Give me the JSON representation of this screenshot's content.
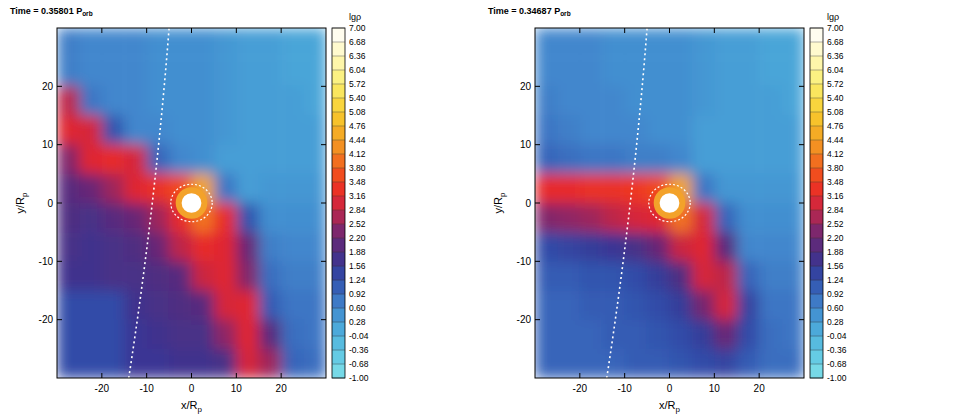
{
  "chart_data": [
    {
      "type": "heatmap",
      "title": "Time = 0.35801 P",
      "title_sub": "orb",
      "xlabel": "x/R",
      "xlabel_sub": "p",
      "ylabel": "y/R",
      "ylabel_sub": "p",
      "xlim": [
        -30,
        30
      ],
      "ylim": [
        -30,
        30
      ],
      "xticks": [
        -20,
        -10,
        0,
        10,
        20
      ],
      "yticks": [
        -20,
        -10,
        0,
        10,
        20
      ],
      "cells": [
        [
          0.7,
          0.6,
          0.6,
          0.6,
          0.5,
          0.5,
          0.5,
          0.4,
          0.3,
          0.3,
          0.2,
          0.2
        ],
        [
          0.7,
          0.6,
          0.6,
          0.6,
          0.5,
          0.5,
          0.5,
          0.4,
          0.3,
          0.3,
          0.2,
          0.2
        ],
        [
          2.8,
          0.8,
          0.6,
          0.6,
          0.5,
          0.5,
          0.5,
          0.4,
          0.3,
          0.3,
          0.3,
          0.2
        ],
        [
          3.1,
          3.0,
          1.2,
          0.6,
          0.6,
          0.5,
          0.5,
          0.4,
          0.3,
          0.3,
          0.3,
          0.3
        ],
        [
          2.4,
          3.1,
          3.2,
          3.0,
          1.0,
          0.6,
          0.5,
          0.3,
          0.3,
          0.3,
          0.3,
          0.3
        ],
        [
          2.0,
          2.2,
          2.6,
          3.1,
          3.3,
          3.6,
          4.5,
          0.8,
          0.3,
          0.4,
          0.4,
          0.4
        ],
        [
          1.9,
          1.8,
          2.0,
          2.2,
          2.6,
          3.2,
          4.0,
          3.2,
          1.2,
          0.5,
          0.5,
          0.5
        ],
        [
          1.8,
          1.7,
          1.8,
          1.9,
          2.2,
          2.8,
          3.2,
          3.1,
          2.2,
          0.7,
          0.6,
          0.6
        ],
        [
          1.7,
          1.7,
          1.8,
          1.8,
          1.9,
          2.0,
          2.9,
          3.1,
          2.4,
          0.9,
          0.7,
          0.7
        ],
        [
          1.3,
          1.3,
          1.3,
          1.7,
          1.8,
          1.9,
          2.0,
          3.0,
          3.1,
          1.1,
          0.8,
          0.8
        ],
        [
          1.3,
          1.3,
          1.3,
          1.6,
          1.7,
          1.8,
          1.8,
          2.5,
          3.1,
          2.0,
          0.9,
          0.8
        ],
        [
          1.3,
          1.3,
          1.3,
          1.6,
          1.6,
          1.7,
          1.7,
          1.8,
          3.0,
          2.6,
          1.0,
          0.9
        ]
      ],
      "colorbar_label": "lgρ",
      "colorbar_range": [
        -1,
        7
      ],
      "colorbar_ticks": [
        {
          "value": 7,
          "label": "7.00"
        },
        {
          "value": 6.68,
          "label": "6.68"
        },
        {
          "value": 6.36,
          "label": "6.36"
        },
        {
          "value": 6.04,
          "label": "6.04"
        },
        {
          "value": 5.72,
          "label": "5.72"
        },
        {
          "value": 5.4,
          "label": "5.40"
        },
        {
          "value": 5.08,
          "label": "5.08"
        },
        {
          "value": 4.76,
          "label": "4.76"
        },
        {
          "value": 4.44,
          "label": "4.44"
        },
        {
          "value": 4.12,
          "label": "4.12"
        },
        {
          "value": 3.8,
          "label": "3.80"
        },
        {
          "value": 3.48,
          "label": "3.48"
        },
        {
          "value": 3.16,
          "label": "3.16"
        },
        {
          "value": 2.84,
          "label": "2.84"
        },
        {
          "value": 2.52,
          "label": "2.52"
        },
        {
          "value": 2.2,
          "label": "2.20"
        },
        {
          "value": 1.88,
          "label": "1.88"
        },
        {
          "value": 1.56,
          "label": "1.56"
        },
        {
          "value": 1.24,
          "label": "1.24"
        },
        {
          "value": 0.92,
          "label": "0.92"
        },
        {
          "value": 0.6,
          "label": "0.60"
        },
        {
          "value": 0.28,
          "label": "0.28"
        },
        {
          "value": -0.04,
          "label": "-0.04"
        },
        {
          "value": -0.36,
          "label": "-0.36"
        },
        {
          "value": -0.68,
          "label": "-0.68"
        },
        {
          "value": -1,
          "label": "-1.00"
        }
      ]
    },
    {
      "type": "heatmap",
      "title": "Time = 0.34687 P",
      "title_sub": "orb",
      "xlabel": "x/R",
      "xlabel_sub": "p",
      "ylabel": "y/R",
      "ylabel_sub": "p",
      "xlim": [
        -30,
        30
      ],
      "ylim": [
        -30,
        30
      ],
      "xticks": [
        -20,
        -10,
        0,
        10,
        20
      ],
      "yticks": [
        -20,
        -10,
        0,
        10,
        20
      ],
      "cells": [
        [
          0.6,
          0.6,
          0.6,
          0.5,
          0.5,
          0.5,
          0.5,
          0.4,
          0.3,
          0.3,
          0.2,
          0.2
        ],
        [
          0.6,
          0.6,
          0.6,
          0.5,
          0.5,
          0.5,
          0.5,
          0.4,
          0.3,
          0.3,
          0.2,
          0.2
        ],
        [
          0.7,
          0.6,
          0.6,
          0.6,
          0.5,
          0.5,
          0.5,
          0.4,
          0.3,
          0.3,
          0.3,
          0.2
        ],
        [
          0.8,
          0.7,
          0.6,
          0.6,
          0.6,
          0.5,
          0.5,
          0.3,
          0.3,
          0.3,
          0.3,
          0.3
        ],
        [
          1.0,
          0.9,
          0.8,
          0.8,
          0.7,
          0.7,
          0.6,
          0.3,
          0.3,
          0.3,
          0.3,
          0.3
        ],
        [
          3.2,
          3.2,
          3.3,
          3.3,
          3.4,
          3.6,
          4.5,
          0.8,
          0.4,
          0.4,
          0.4,
          0.4
        ],
        [
          2.4,
          2.5,
          2.6,
          2.8,
          3.0,
          3.1,
          4.0,
          3.0,
          1.0,
          0.5,
          0.5,
          0.5
        ],
        [
          1.3,
          1.4,
          1.5,
          1.6,
          1.8,
          2.2,
          2.9,
          3.1,
          2.0,
          0.6,
          0.6,
          0.6
        ],
        [
          1.1,
          1.1,
          1.2,
          1.2,
          1.3,
          1.5,
          1.9,
          3.0,
          2.8,
          1.0,
          0.7,
          0.7
        ],
        [
          1.0,
          1.0,
          1.1,
          1.1,
          1.2,
          1.3,
          1.5,
          2.3,
          3.0,
          1.4,
          0.8,
          0.8
        ],
        [
          1.0,
          1.0,
          1.0,
          1.1,
          1.1,
          1.2,
          1.3,
          1.5,
          2.2,
          1.3,
          0.9,
          0.8
        ],
        [
          1.0,
          1.0,
          1.0,
          1.0,
          1.1,
          1.1,
          1.2,
          1.3,
          1.4,
          1.1,
          0.9,
          0.9
        ]
      ],
      "colorbar_label": "lgρ",
      "colorbar_range": [
        -1,
        7
      ],
      "colorbar_ticks": [
        {
          "value": 7,
          "label": "7.00"
        },
        {
          "value": 6.68,
          "label": "6.68"
        },
        {
          "value": 6.36,
          "label": "6.36"
        },
        {
          "value": 6.04,
          "label": "6.04"
        },
        {
          "value": 5.72,
          "label": "5.72"
        },
        {
          "value": 5.4,
          "label": "5.40"
        },
        {
          "value": 5.08,
          "label": "5.08"
        },
        {
          "value": 4.76,
          "label": "4.76"
        },
        {
          "value": 4.44,
          "label": "4.44"
        },
        {
          "value": 4.12,
          "label": "4.12"
        },
        {
          "value": 3.8,
          "label": "3.80"
        },
        {
          "value": 3.48,
          "label": "3.48"
        },
        {
          "value": 3.16,
          "label": "3.16"
        },
        {
          "value": 2.84,
          "label": "2.84"
        },
        {
          "value": 2.52,
          "label": "2.52"
        },
        {
          "value": 2.2,
          "label": "2.20"
        },
        {
          "value": 1.88,
          "label": "1.88"
        },
        {
          "value": 1.56,
          "label": "1.56"
        },
        {
          "value": 1.24,
          "label": "1.24"
        },
        {
          "value": 0.92,
          "label": "0.92"
        },
        {
          "value": 0.6,
          "label": "0.60"
        },
        {
          "value": 0.28,
          "label": "0.28"
        },
        {
          "value": -0.04,
          "label": "-0.04"
        },
        {
          "value": -0.36,
          "label": "-0.36"
        },
        {
          "value": -0.68,
          "label": "-0.68"
        },
        {
          "value": -1,
          "label": "-1.00"
        }
      ]
    }
  ]
}
